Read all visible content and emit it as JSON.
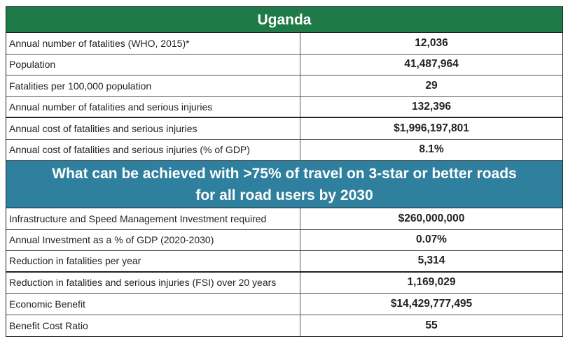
{
  "country_title": "Uganda",
  "section1": [
    {
      "label": "Annual number of fatalities (WHO, 2015)*",
      "value": "12,036"
    },
    {
      "label": "Population",
      "value": "41,487,964"
    },
    {
      "label": "Fatalities per 100,000 population",
      "value": "29"
    },
    {
      "label": "Annual number of fatalities and serious injuries",
      "value": "132,396"
    },
    {
      "label": "Annual cost of fatalities and serious injuries",
      "value": "$1,996,197,801"
    },
    {
      "label": "Annual cost of fatalities and serious injuries (% of GDP)",
      "value": "8.1%"
    }
  ],
  "section2_title_line1": "What can be achieved with >75% of travel on 3-star or better roads",
  "section2_title_line2": "for all road users by 2030",
  "section2": [
    {
      "label": "Infrastructure and Speed Management Investment required",
      "value": "$260,000,000"
    },
    {
      "label": "Annual Investment as a % of GDP (2020-2030)",
      "value": "0.07%"
    },
    {
      "label": "Reduction in fatalities per year",
      "value": "5,314"
    },
    {
      "label": "Reduction in fatalities and serious injuries (FSI) over 20 years",
      "value": "1,169,029"
    },
    {
      "label": "Economic Benefit",
      "value": "$14,429,777,495"
    },
    {
      "label": "Benefit Cost Ratio",
      "value": "55"
    }
  ],
  "colors": {
    "green_header": "#1e7a46",
    "blue_header": "#2f7f9e"
  }
}
